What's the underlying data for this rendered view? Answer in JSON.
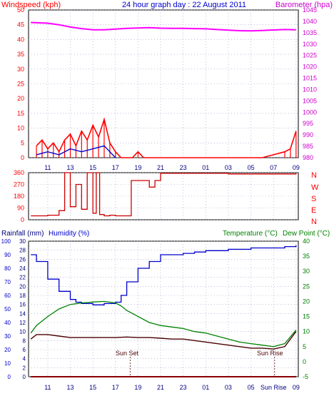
{
  "header": {
    "left_label": "Windspeed (kph)",
    "title": "24 hour graph day : 22 August 2011",
    "right_label": "Barometer (hpa)"
  },
  "colors": {
    "wind": "#ff0000",
    "gust_secondary": "#0000cc",
    "barometer": "#ff00ff",
    "direction": "#cc0000",
    "humidity": "#0000cc",
    "temperature": "#008000",
    "dew_point": "#4b0000",
    "rainfall": "#880000",
    "frame": "#000000",
    "left_axis_text": "#ff0000",
    "right_axis_text": "#cc00cc",
    "bottom_left_text": "#0000cc",
    "bottom_right_text": "#008000",
    "header_text": "#0000cc"
  },
  "x_tick_labels": [
    "11",
    "13",
    "15",
    "17",
    "19",
    "21",
    "23",
    "01",
    "03",
    "05",
    "07",
    "09"
  ],
  "x_tick_labels_bottom": [
    "11",
    "13",
    "15",
    "17",
    "19",
    "21",
    "23",
    "01",
    "03",
    "05",
    "Sun Rise",
    "09"
  ],
  "chart_data": [
    {
      "type": "line",
      "title": "24 hour graph day : 22 August 2011",
      "x_hours": [
        9.5,
        11,
        12,
        13,
        14,
        15,
        16,
        17,
        18,
        19,
        20,
        21,
        22,
        23,
        24,
        25,
        26,
        27,
        28,
        29,
        30,
        31,
        32,
        33
      ],
      "ylabel_left": "Windspeed (kph)",
      "ylabel_right": "Barometer (hpa)",
      "ylim_left": [
        0,
        50
      ],
      "ylim_right": [
        980,
        1045
      ],
      "y_ticks_left": [
        "0",
        "5",
        "10",
        "15",
        "20",
        "25",
        "30",
        "35",
        "40",
        "45",
        "50"
      ],
      "y_ticks_right": [
        "980",
        "985",
        "990",
        "995",
        "1000",
        "1005",
        "1010",
        "1015",
        "1020",
        "1025",
        "1030",
        "1035",
        "1040",
        "1045"
      ],
      "series": [
        {
          "name": "Barometer (hpa)",
          "axis": "right",
          "x": [
            9.5,
            11,
            12,
            13,
            14,
            15,
            16,
            17,
            18,
            19,
            20,
            21,
            22,
            23,
            24,
            25,
            26,
            27,
            28,
            29,
            30,
            31,
            32,
            33
          ],
          "values": [
            1039.5,
            1039.2,
            1038.5,
            1037.5,
            1036.8,
            1036.3,
            1036.3,
            1036.6,
            1036.9,
            1037.1,
            1037.2,
            1037.0,
            1036.9,
            1036.9,
            1036.8,
            1036.7,
            1036.4,
            1036.1,
            1035.9,
            1035.8,
            1036.0,
            1036.2,
            1036.4,
            1036.3
          ]
        },
        {
          "name": "Windspeed (kph)",
          "axis": "left",
          "x": [
            10,
            10.5,
            11,
            11.5,
            12,
            12.5,
            13,
            13.5,
            14,
            14.5,
            15,
            15.5,
            16,
            16.5,
            17,
            17.5,
            18,
            18.5,
            19,
            19.5,
            20,
            22,
            24,
            26,
            28,
            30,
            32,
            32.5,
            33
          ],
          "values": [
            4,
            6,
            3,
            5,
            2,
            6,
            8,
            4,
            9,
            6,
            11,
            7,
            13,
            5,
            2,
            0,
            0,
            0,
            2,
            0,
            0,
            0,
            0,
            0,
            0,
            0,
            2,
            3,
            9
          ]
        },
        {
          "name": "Gust (kph)",
          "axis": "left",
          "x": [
            10,
            11,
            12,
            13,
            14,
            15,
            16,
            16.5,
            17
          ],
          "values": [
            1,
            2,
            1,
            3,
            2,
            3,
            4,
            2,
            0
          ]
        }
      ]
    },
    {
      "type": "line",
      "y_ticks": [
        "0",
        "90",
        "180",
        "270",
        "360"
      ],
      "ylim": [
        0,
        360
      ],
      "compass_labels": [
        "N",
        "W",
        "S",
        "E",
        "N"
      ],
      "series": [
        {
          "name": "Wind direction",
          "x": [
            9.5,
            11,
            12,
            12.5,
            13,
            13.5,
            14,
            14.5,
            15,
            15.3,
            15.6,
            16,
            16.5,
            17,
            18,
            18.4,
            19,
            20,
            20.5,
            21,
            24,
            27,
            30,
            33
          ],
          "values": [
            30,
            35,
            70,
            360,
            100,
            270,
            80,
            360,
            50,
            360,
            40,
            30,
            35,
            30,
            30,
            300,
            300,
            250,
            300,
            355,
            355,
            350,
            350,
            355
          ]
        }
      ]
    },
    {
      "type": "line",
      "ylabel_left": "Rainfall (mm)",
      "ylabel_left_2": "Humidity (%)",
      "ylabel_right": "Temperature (°C)",
      "ylabel_right_2": "Dew Point (°C)",
      "ylim_humidity": [
        0,
        100
      ],
      "ylim_rain": [
        0,
        30
      ],
      "ylim_temp": [
        -5,
        40
      ],
      "y_ticks_humidity": [
        "0",
        "10",
        "20",
        "30",
        "40",
        "50",
        "60",
        "70",
        "80",
        "90",
        "100"
      ],
      "y_ticks_rain": [
        "0",
        "2",
        "4",
        "6",
        "8",
        "10",
        "12",
        "14",
        "16",
        "18",
        "20",
        "22",
        "24",
        "26",
        "28",
        "30"
      ],
      "y_ticks_temp": [
        "-5",
        "0",
        "5",
        "10",
        "15",
        "20",
        "25",
        "30",
        "35",
        "40"
      ],
      "annotations": [
        {
          "text": "Sun Set",
          "x": 18.3
        },
        {
          "text": "Sun Rise",
          "x": 31.1
        }
      ],
      "series": [
        {
          "name": "Humidity (%)",
          "axis": "humidity",
          "x": [
            9.5,
            10,
            11,
            12,
            13,
            13.5,
            14,
            15,
            16,
            17,
            17.5,
            18,
            19,
            20,
            21,
            22,
            23,
            24,
            25,
            26,
            27,
            28,
            29,
            30,
            31,
            32,
            33
          ],
          "values": [
            90,
            85,
            72,
            63,
            57,
            55,
            54,
            53,
            54,
            55,
            60,
            70,
            80,
            85,
            90,
            90,
            91,
            92,
            93,
            93,
            94,
            94,
            95,
            95,
            95,
            96,
            97
          ]
        },
        {
          "name": "Temperature (°C)",
          "axis": "temp",
          "x": [
            9.5,
            10,
            11,
            12,
            13,
            14,
            15,
            16,
            17,
            17.5,
            18,
            19,
            20,
            21,
            22,
            23,
            24,
            25,
            26,
            27,
            28,
            29,
            30,
            31,
            32,
            33
          ],
          "values": [
            9.5,
            12,
            15,
            17.5,
            19,
            19.5,
            19.8,
            20,
            19.5,
            18.5,
            17,
            15,
            13,
            12,
            11.5,
            11,
            10,
            9.5,
            8.5,
            7.5,
            6.5,
            6,
            5.5,
            5,
            6,
            10.5
          ]
        },
        {
          "name": "Dew Point (°C)",
          "axis": "temp",
          "x": [
            9.5,
            10,
            11,
            12,
            13,
            14,
            15,
            16,
            17,
            18,
            19,
            20,
            21,
            22,
            23,
            24,
            25,
            26,
            27,
            28,
            29,
            30,
            31,
            32,
            33
          ],
          "values": [
            7.5,
            9,
            9,
            8.5,
            8,
            8,
            8,
            8,
            8,
            8.2,
            8,
            8,
            7.8,
            7.5,
            7.5,
            7,
            6.5,
            6,
            5.5,
            5,
            4.5,
            4.5,
            4.2,
            5,
            10
          ]
        },
        {
          "name": "Rainfall (mm)",
          "axis": "rain",
          "x": [
            9.5,
            33
          ],
          "values": [
            0,
            0
          ]
        }
      ]
    }
  ]
}
